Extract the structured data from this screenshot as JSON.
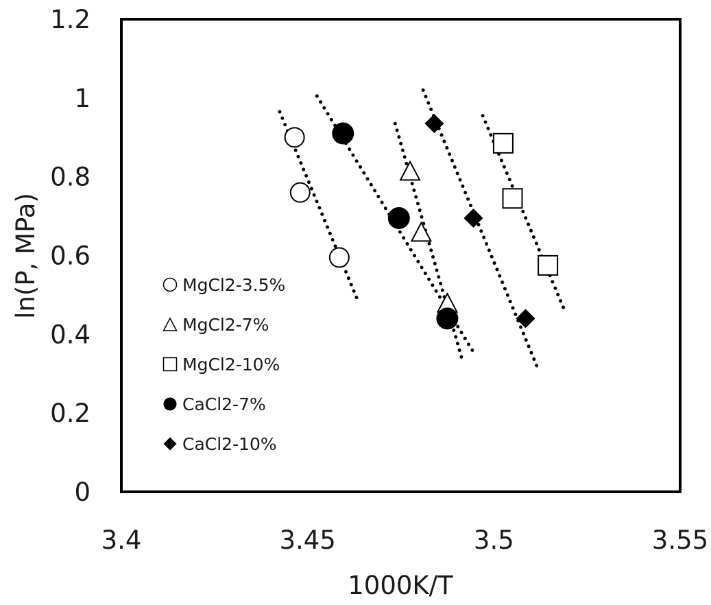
{
  "chart_data": {
    "type": "scatter",
    "title": "",
    "xlabel": "1000K/T",
    "ylabel": "ln(P, MPa)",
    "xlim": [
      3.4,
      3.55
    ],
    "ylim": [
      0,
      1.2
    ],
    "x_ticks": [
      "3.4",
      "3.45",
      "3.5",
      "3.55"
    ],
    "y_ticks": [
      "0",
      "0.2",
      "0.4",
      "0.6",
      "0.8",
      "1",
      "1.2"
    ],
    "grid": false,
    "legend_position": "left",
    "series": [
      {
        "name": "MgCl2-3.5%",
        "marker": "circle-open",
        "x": [
          3.4465,
          3.448,
          3.4585
        ],
        "y": [
          0.9,
          0.76,
          0.595
        ],
        "trendline": {
          "x": [
            3.4425,
            3.4635
          ],
          "y": [
            0.965,
            0.485
          ]
        }
      },
      {
        "name": "MgCl2-7%",
        "marker": "triangle-open",
        "x": [
          3.4775,
          3.4805,
          3.4875
        ],
        "y": [
          0.815,
          0.66,
          0.48
        ],
        "trendline": {
          "x": [
            3.4735,
            3.4915
          ],
          "y": [
            0.935,
            0.335
          ]
        }
      },
      {
        "name": "MgCl2-10%",
        "marker": "square-open",
        "x": [
          3.5025,
          3.505,
          3.5145
        ],
        "y": [
          0.885,
          0.745,
          0.575
        ],
        "trendline": {
          "x": [
            3.497,
            3.519
          ],
          "y": [
            0.955,
            0.46
          ]
        }
      },
      {
        "name": "CaCl2-7%",
        "marker": "circle-filled",
        "x": [
          3.4595,
          3.4745,
          3.4875
        ],
        "y": [
          0.91,
          0.695,
          0.44
        ],
        "trendline": {
          "x": [
            3.4525,
            3.4945
          ],
          "y": [
            1.005,
            0.355
          ]
        }
      },
      {
        "name": "CaCl2-10%",
        "marker": "diamond-filled",
        "x": [
          3.484,
          3.4945,
          3.5085
        ],
        "y": [
          0.935,
          0.695,
          0.44
        ],
        "trendline": {
          "x": [
            3.481,
            3.5115
          ],
          "y": [
            1.02,
            0.32
          ]
        }
      }
    ],
    "colors": {
      "ink": "#000000",
      "open_fill": "#ffffff",
      "text": "#1a1a1a"
    }
  }
}
